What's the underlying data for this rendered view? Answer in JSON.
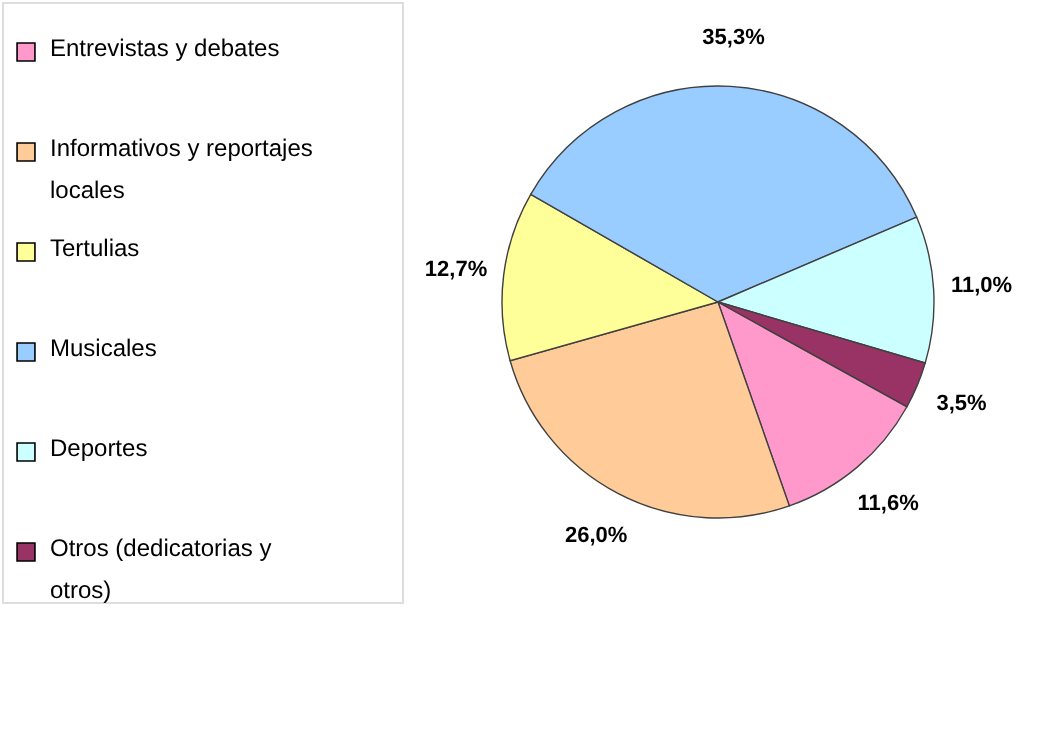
{
  "chart_data": {
    "type": "pie",
    "categories": [
      "Entrevistas y debates",
      "Informativos y reportajes locales",
      "Tertulias",
      "Musicales",
      "Deportes",
      "Otros (dedicatorias y otros)"
    ],
    "values": [
      11.6,
      26.0,
      12.7,
      35.3,
      11.0,
      3.5
    ],
    "colors": [
      "#ff99cc",
      "#ffcc99",
      "#ffff99",
      "#99ccff",
      "#ccffff",
      "#993366"
    ],
    "value_labels": [
      "11,6%",
      "26,0%",
      "12,7%",
      "35,3%",
      "11,0%",
      "3,5%"
    ],
    "legend": "left"
  }
}
